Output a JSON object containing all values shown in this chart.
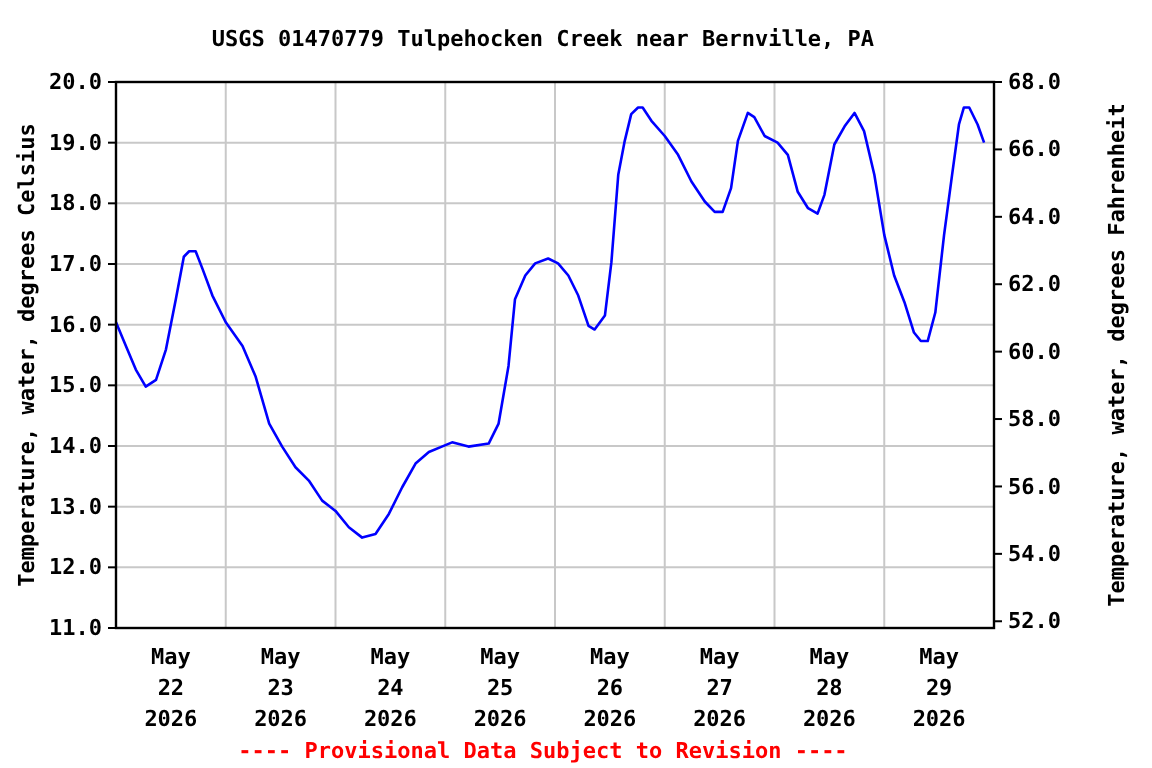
{
  "chart_data": {
    "type": "line",
    "title": "USGS 01470779 Tulpehocken Creek near Bernville, PA",
    "ylabel": "Temperature, water, degrees Celsius",
    "y2label": "Temperature, water, degrees Fahrenheit",
    "annotations": [
      "---- Provisional Data Subject to Revision ----"
    ],
    "x": [
      "2026-05-22T00:00",
      "2026-05-22T02:10",
      "2026-05-22T04:20",
      "2026-05-22T06:30",
      "2026-05-22T08:45",
      "2026-05-22T10:55",
      "2026-05-22T13:05",
      "2026-05-22T14:50",
      "2026-05-22T16:00",
      "2026-05-22T17:25",
      "2026-05-22T18:55",
      "2026-05-22T21:05",
      "2026-05-23T00:00",
      "2026-05-23T03:40",
      "2026-05-23T06:30",
      "2026-05-23T09:30",
      "2026-05-23T12:20",
      "2026-05-23T15:15",
      "2026-05-23T18:10",
      "2026-05-23T21:05",
      "2026-05-24T00:00",
      "2026-05-24T02:55",
      "2026-05-24T05:50",
      "2026-05-24T08:45",
      "2026-05-24T11:40",
      "2026-05-24T14:35",
      "2026-05-24T17:30",
      "2026-05-24T20:25",
      "2026-05-24T23:15",
      "2026-05-25T01:30",
      "2026-05-25T05:05",
      "2026-05-25T09:30",
      "2026-05-25T11:40",
      "2026-05-25T13:50",
      "2026-05-25T15:15",
      "2026-05-25T17:30",
      "2026-05-25T19:40",
      "2026-05-25T22:30",
      "2026-05-26T00:40",
      "2026-05-26T02:55",
      "2026-05-26T05:05",
      "2026-05-26T07:20",
      "2026-05-26T08:40",
      "2026-05-26T10:55",
      "2026-05-26T12:20",
      "2026-05-26T13:50",
      "2026-05-26T15:15",
      "2026-05-26T16:40",
      "2026-05-26T18:10",
      "2026-05-26T19:10",
      "2026-05-26T21:05",
      "2026-05-27T00:00",
      "2026-05-27T02:55",
      "2026-05-27T05:50",
      "2026-05-27T08:45",
      "2026-05-27T10:55",
      "2026-05-27T12:40",
      "2026-05-27T14:30",
      "2026-05-27T16:00",
      "2026-05-27T18:10",
      "2026-05-27T19:35",
      "2026-05-27T21:50",
      "2026-05-28T00:40",
      "2026-05-28T02:55",
      "2026-05-28T05:05",
      "2026-05-28T07:20",
      "2026-05-28T09:25",
      "2026-05-28T10:55",
      "2026-05-28T13:05",
      "2026-05-28T15:20",
      "2026-05-28T17:30",
      "2026-05-28T19:35",
      "2026-05-28T21:50",
      "2026-05-29T00:00",
      "2026-05-29T02:10",
      "2026-05-29T04:25",
      "2026-05-29T06:30",
      "2026-05-29T08:00",
      "2026-05-29T09:30",
      "2026-05-29T11:10",
      "2026-05-29T13:05",
      "2026-05-29T14:50",
      "2026-05-29T16:20",
      "2026-05-29T17:25",
      "2026-05-29T18:35",
      "2026-05-29T20:25",
      "2026-05-29T21:50"
    ],
    "series": [
      {
        "color": "#0000ff",
        "values": [
          16.04,
          15.65,
          15.26,
          14.98,
          15.09,
          15.59,
          16.42,
          17.12,
          17.21,
          17.21,
          16.92,
          16.48,
          16.04,
          15.65,
          15.15,
          14.37,
          13.99,
          13.65,
          13.43,
          13.1,
          12.93,
          12.66,
          12.49,
          12.55,
          12.88,
          13.32,
          13.71,
          13.9,
          13.99,
          14.06,
          13.99,
          14.04,
          14.37,
          15.32,
          16.42,
          16.81,
          17.01,
          17.09,
          17.01,
          16.81,
          16.48,
          15.98,
          15.92,
          16.15,
          17.03,
          18.47,
          19.03,
          19.47,
          19.58,
          19.58,
          19.36,
          19.11,
          18.8,
          18.36,
          18.03,
          17.86,
          17.86,
          18.25,
          19.03,
          19.49,
          19.42,
          19.11,
          19.0,
          18.8,
          18.19,
          17.92,
          17.83,
          18.14,
          18.97,
          19.27,
          19.49,
          19.19,
          18.47,
          17.48,
          16.81,
          16.37,
          15.87,
          15.73,
          15.73,
          16.2,
          17.48,
          18.47,
          19.3,
          19.58,
          19.58,
          19.3,
          19.0
        ]
      }
    ],
    "xlim": [
      "2026-05-22T00:00",
      "2026-05-30T00:00"
    ],
    "xticks": [
      {
        "value": "2026-05-22T12:00",
        "label": "May\n22\n2026"
      },
      {
        "value": "2026-05-23T12:00",
        "label": "May\n23\n2026"
      },
      {
        "value": "2026-05-24T12:00",
        "label": "May\n24\n2026"
      },
      {
        "value": "2026-05-25T12:00",
        "label": "May\n25\n2026"
      },
      {
        "value": "2026-05-26T12:00",
        "label": "May\n26\n2026"
      },
      {
        "value": "2026-05-27T12:00",
        "label": "May\n27\n2026"
      },
      {
        "value": "2026-05-28T12:00",
        "label": "May\n28\n2026"
      },
      {
        "value": "2026-05-29T12:00",
        "label": "May\n29\n2026"
      },
      {
        "value": "2026-05-23T00:00",
        "label": null
      },
      {
        "value": "2026-05-24T00:00",
        "label": null
      },
      {
        "value": "2026-05-25T00:00",
        "label": null
      },
      {
        "value": "2026-05-26T00:00",
        "label": null
      },
      {
        "value": "2026-05-27T00:00",
        "label": null
      },
      {
        "value": "2026-05-28T00:00",
        "label": null
      },
      {
        "value": "2026-05-29T00:00",
        "label": null
      }
    ],
    "ylim": [
      11,
      20
    ],
    "yticks": [
      {
        "value": 11,
        "label": "11.0"
      },
      {
        "value": 12,
        "label": "12.0"
      },
      {
        "value": 13,
        "label": "13.0"
      },
      {
        "value": 14,
        "label": "14.0"
      },
      {
        "value": 15,
        "label": "15.0"
      },
      {
        "value": 16,
        "label": "16.0"
      },
      {
        "value": 17,
        "label": "17.0"
      },
      {
        "value": 18,
        "label": "18.0"
      },
      {
        "value": 19,
        "label": "19.0"
      },
      {
        "value": 20,
        "label": "20.0"
      }
    ],
    "y2lim": [
      51.8,
      68
    ],
    "y2ticks": [
      {
        "value": 52,
        "label": "52.0"
      },
      {
        "value": 54,
        "label": "54.0"
      },
      {
        "value": 56,
        "label": "56.0"
      },
      {
        "value": 58,
        "label": "58.0"
      },
      {
        "value": 60,
        "label": "60.0"
      },
      {
        "value": 62,
        "label": "62.0"
      },
      {
        "value": 64,
        "label": "64.0"
      },
      {
        "value": 66,
        "label": "66.0"
      },
      {
        "value": 68,
        "label": "68.0"
      }
    ],
    "grid": true,
    "marker": "none",
    "line_style": "solid"
  }
}
